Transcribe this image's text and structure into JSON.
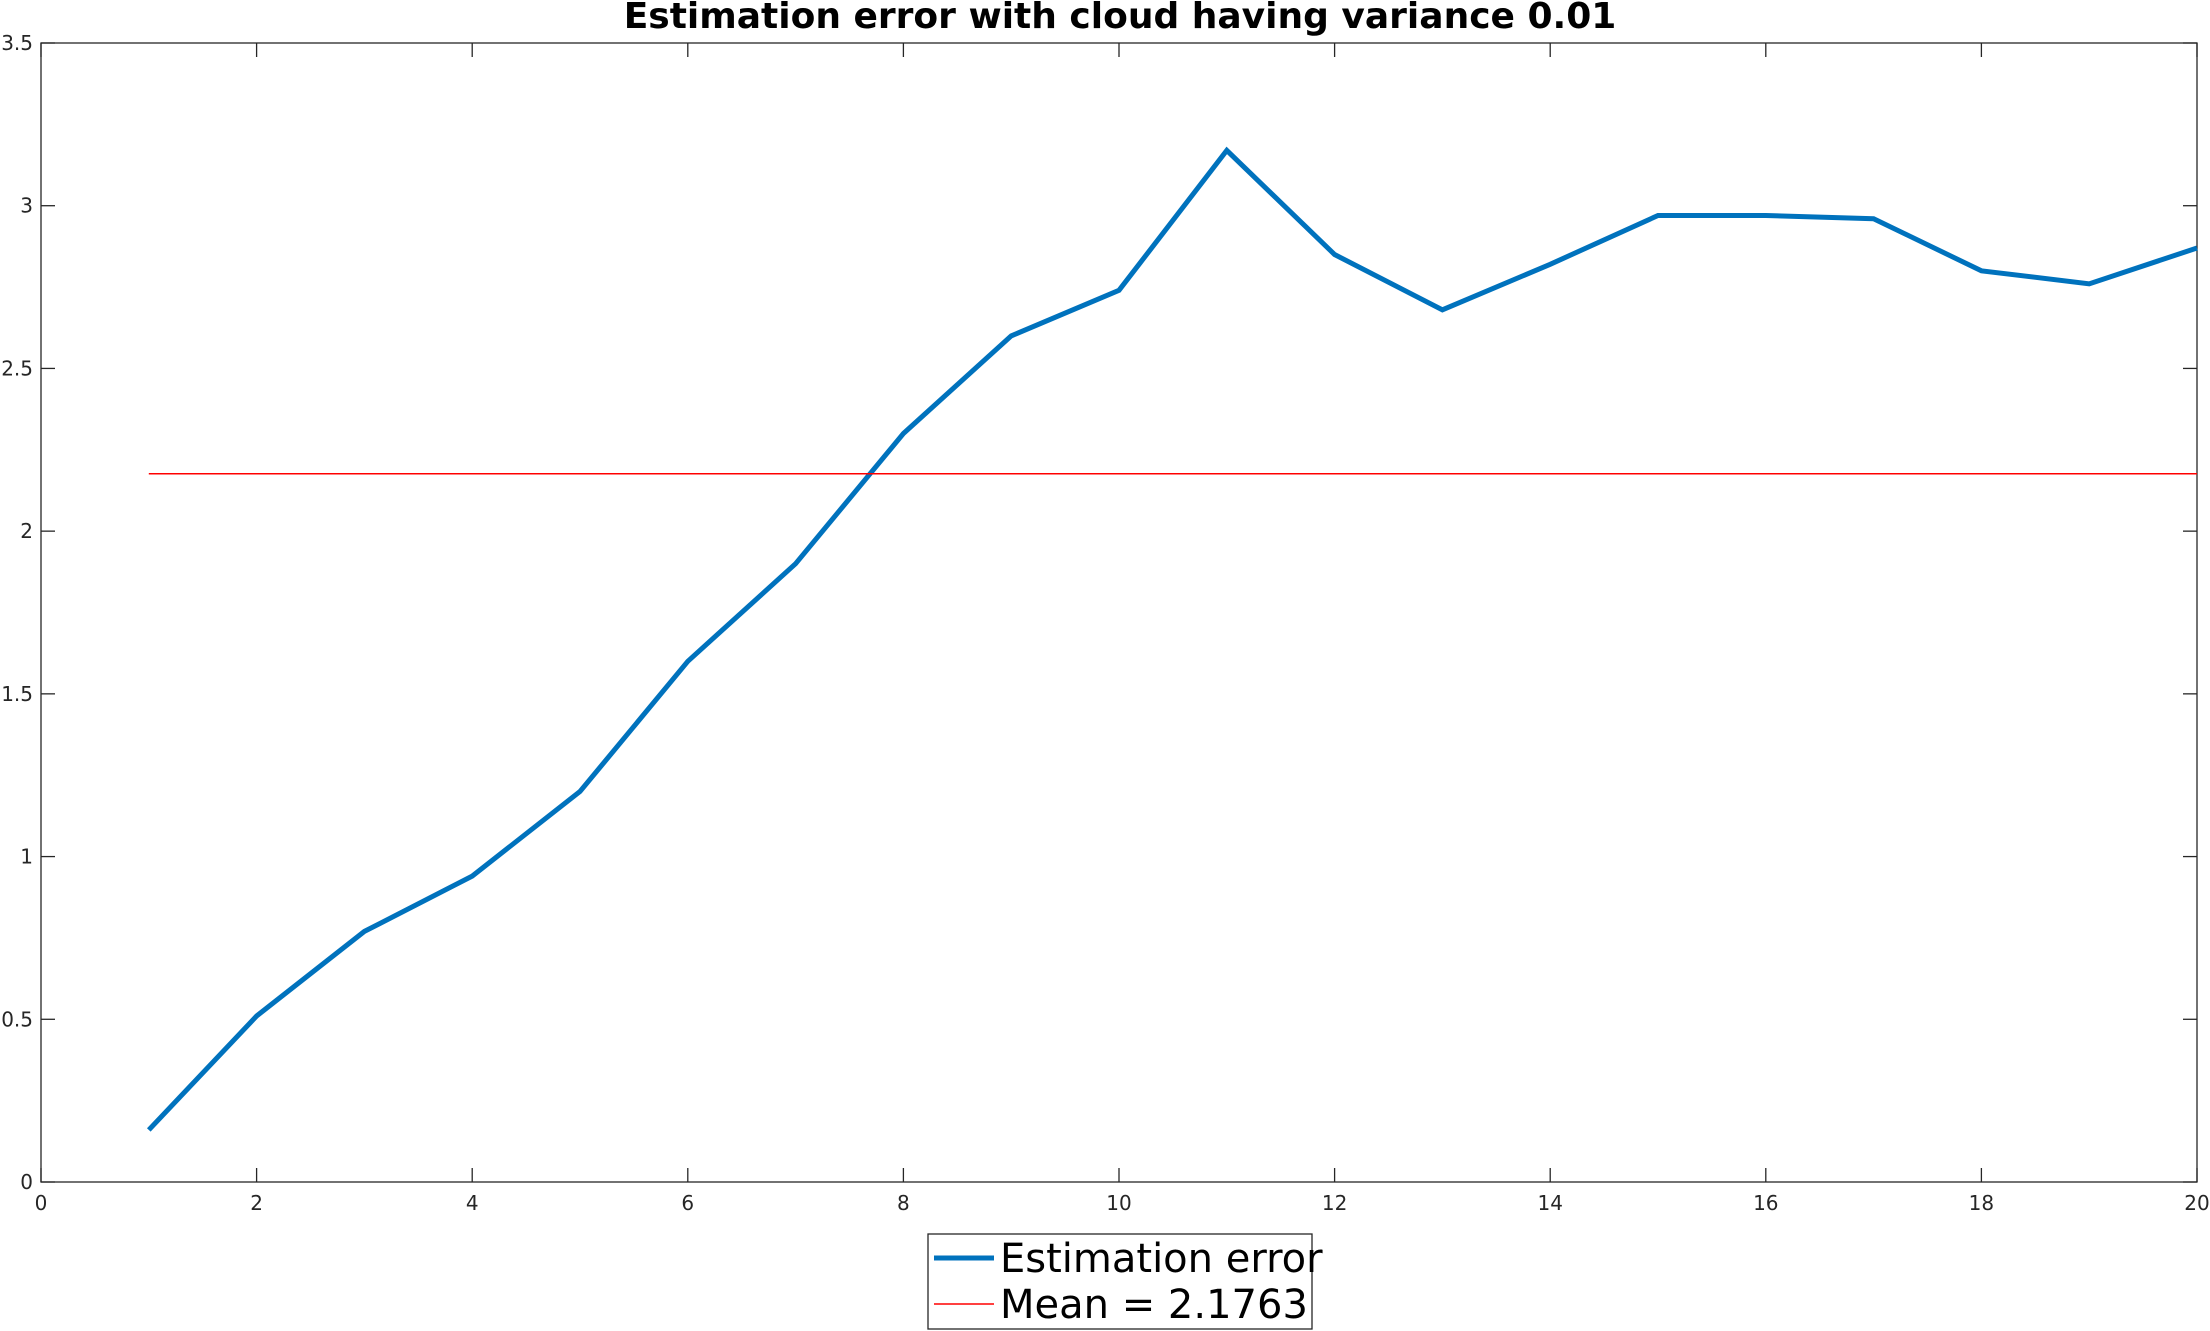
{
  "chart_data": {
    "type": "line",
    "title": "Estimation error with cloud having variance 0.01",
    "xlabel": "",
    "ylabel": "",
    "xlim": [
      0,
      20
    ],
    "ylim": [
      0,
      3.5
    ],
    "x_ticks": [
      "0",
      "2",
      "4",
      "6",
      "8",
      "10",
      "12",
      "14",
      "16",
      "18",
      "20"
    ],
    "y_ticks": [
      "0",
      "0.5",
      "1",
      "1.5",
      "2",
      "2.5",
      "3",
      "3.5"
    ],
    "grid": false,
    "legend_position": "bottom-center",
    "series": [
      {
        "name": "Estimation error",
        "color": "#0072BD",
        "x": [
          1,
          2,
          3,
          4,
          5,
          6,
          7,
          8,
          9,
          10,
          11,
          12,
          13,
          14,
          15,
          16,
          17,
          18,
          19,
          20
        ],
        "values": [
          0.16,
          0.51,
          0.77,
          0.94,
          1.2,
          1.6,
          1.9,
          2.3,
          2.6,
          2.74,
          3.17,
          2.85,
          2.68,
          2.82,
          2.97,
          2.97,
          2.96,
          2.8,
          2.76,
          2.87
        ]
      },
      {
        "name": "Mean = 2.1763",
        "color": "#FF0000",
        "x": [
          1,
          20
        ],
        "values": [
          2.1763,
          2.1763
        ]
      }
    ]
  }
}
